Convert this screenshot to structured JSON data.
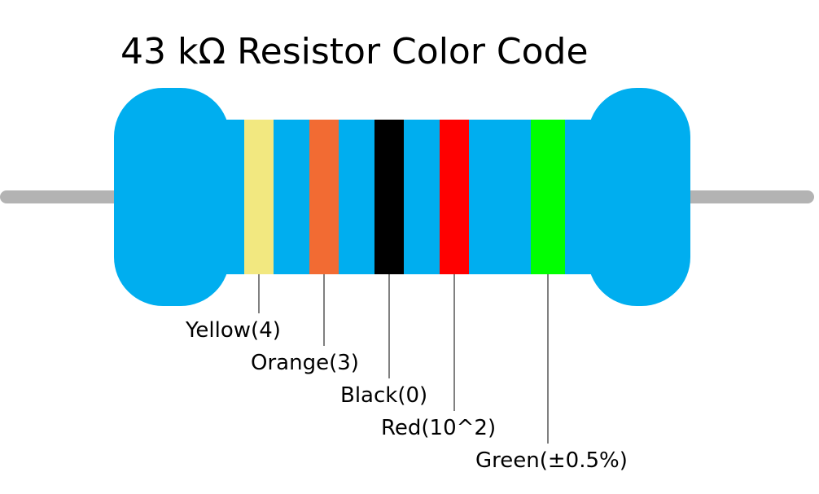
{
  "title": "43 kΩ Resistor Color Code",
  "colors": {
    "body": "#00AEEF",
    "lead": "#B3B3B3"
  },
  "bands": [
    {
      "color_name": "Yellow",
      "label": "Yellow(4)",
      "hex": "#F2E880"
    },
    {
      "color_name": "Orange",
      "label": "Orange(3)",
      "hex": "#F26B33"
    },
    {
      "color_name": "Black",
      "label": "Black(0)",
      "hex": "#000000"
    },
    {
      "color_name": "Red",
      "label": "Red(10^2)",
      "hex": "#FF0000"
    },
    {
      "color_name": "Green",
      "label": "Green(±0.5%)",
      "hex": "#00FF00"
    }
  ]
}
